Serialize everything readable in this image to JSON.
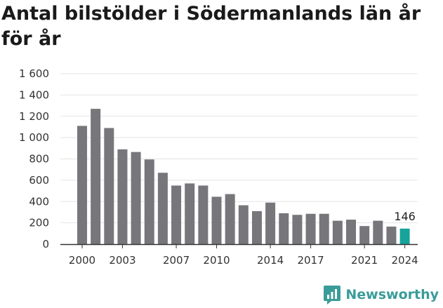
{
  "chart_data": {
    "type": "bar",
    "title": "Antal bilstölder i Södermanlands län år för år",
    "xlabel": "",
    "ylabel": "",
    "ylim": [
      0,
      1600
    ],
    "y_ticks": [
      "0",
      "200",
      "400",
      "600",
      "800",
      "1 000",
      "1 200",
      "1 400",
      "1 600"
    ],
    "y_tick_values": [
      0,
      200,
      400,
      600,
      800,
      1000,
      1200,
      1400,
      1600
    ],
    "x_tick_labels": [
      "2000",
      "2003",
      "2007",
      "2010",
      "2014",
      "2017",
      "2021",
      "2024"
    ],
    "grid": true,
    "categories": [
      "2000",
      "2001",
      "2002",
      "2003",
      "2004",
      "2005",
      "2006",
      "2007",
      "2008",
      "2009",
      "2010",
      "2011",
      "2012",
      "2013",
      "2014",
      "2015",
      "2016",
      "2017",
      "2018",
      "2019",
      "2020",
      "2021",
      "2022",
      "2023",
      "2024"
    ],
    "values": [
      1110,
      1270,
      1090,
      890,
      865,
      795,
      670,
      550,
      570,
      550,
      445,
      470,
      365,
      310,
      390,
      290,
      275,
      285,
      285,
      220,
      230,
      170,
      220,
      165,
      146
    ],
    "highlight_index": 24,
    "highlight_label": "146",
    "colors": {
      "bar": "#77767b",
      "highlight": "#16a39a",
      "grid": "#e3e3e3",
      "axis": "#333333"
    }
  },
  "brand": {
    "name": "Newsworthy",
    "icon": "newsworthy-logo-icon",
    "color": "#3a9c99"
  }
}
